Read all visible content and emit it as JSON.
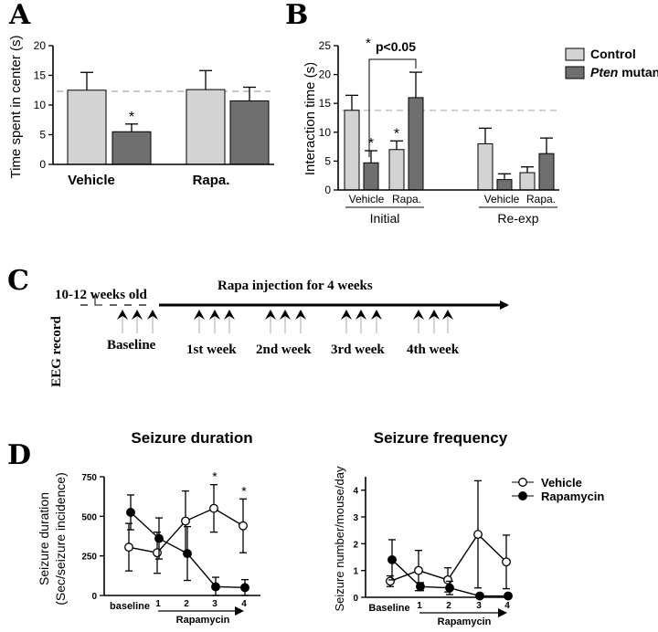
{
  "panel_labels": {
    "a": "A",
    "b": "B",
    "c": "C",
    "d": "D"
  },
  "colors": {
    "control": "#d3d3d3",
    "mutant": "#6f6f6f",
    "reference": "#c8c8c8"
  },
  "chart_data": [
    {
      "id": "A",
      "type": "bar",
      "ylabel": "Time spent in center (s)",
      "ylim": [
        0,
        20
      ],
      "yticks": [
        0,
        5,
        10,
        15,
        20
      ],
      "groups": [
        "Vehicle",
        "Rapa."
      ],
      "series": [
        {
          "name": "Control",
          "values": [
            12.5,
            12.6
          ],
          "errors": [
            3.0,
            3.2
          ]
        },
        {
          "name": "Pten mutant",
          "values": [
            5.5,
            10.7
          ],
          "errors": [
            1.3,
            2.3
          ]
        }
      ],
      "reference_line": 12.3,
      "significance": [
        {
          "group": 0,
          "series": 1,
          "mark": "*"
        }
      ]
    },
    {
      "id": "B",
      "type": "bar",
      "ylabel": "Interaction time (s)",
      "ylim": [
        0,
        25
      ],
      "yticks": [
        0,
        5,
        10,
        15,
        20,
        25
      ],
      "sections": [
        "Initial",
        "Re-exp"
      ],
      "groups": [
        "Vehicle",
        "Rapa.",
        "Vehicle",
        "Rapa."
      ],
      "series": [
        {
          "name": "Control",
          "values": [
            13.8,
            7.0,
            8.0,
            3.0
          ],
          "errors": [
            2.6,
            1.5,
            2.7,
            1.0
          ]
        },
        {
          "name": "Pten mutant",
          "values": [
            4.7,
            16.0,
            1.8,
            6.3
          ],
          "errors": [
            2.1,
            4.4,
            1.0,
            2.7
          ]
        }
      ],
      "reference_line": 13.8,
      "significance_marks": [
        "*",
        "*"
      ],
      "bracket_label": "p<0.05",
      "bracket_star": "*",
      "legend": [
        "Control",
        "Pten mutant"
      ],
      "legend_prefix": "Pten",
      "legend_suffix": " mutant"
    },
    {
      "id": "C",
      "type": "timeline",
      "age_label": "10-12 weeks old",
      "rapa_label": "Rapa injection for 4 weeks",
      "side_label": "EEG record",
      "periods": [
        "Baseline",
        "1st week",
        "2nd week",
        "3rd week",
        "4th week"
      ]
    },
    {
      "id": "D1",
      "type": "line",
      "title": "Seizure duration",
      "ylabel_line1": "Seizure duration",
      "ylabel_line2": "(Sec/seizure incidence)",
      "ylim": [
        0,
        750
      ],
      "yticks": [
        0,
        250,
        500,
        750
      ],
      "categories": [
        "baseline",
        "1",
        "2",
        "3",
        "4"
      ],
      "xbar_label": "Rapamycin",
      "series": [
        {
          "name": "Vehicle",
          "marker": "open",
          "values": [
            305,
            270,
            470,
            550,
            440
          ],
          "errors": [
            150,
            130,
            190,
            150,
            170
          ]
        },
        {
          "name": "Rapamycin",
          "marker": "filled",
          "values": [
            525,
            360,
            265,
            55,
            50
          ],
          "errors": [
            110,
            130,
            170,
            60,
            50
          ]
        }
      ],
      "significance": [
        {
          "index": 3,
          "mark": "*"
        },
        {
          "index": 4,
          "mark": "*"
        }
      ]
    },
    {
      "id": "D2",
      "type": "line",
      "title": "Seizure frequency",
      "ylabel": "Seizure number/mouse/day",
      "ylim": [
        0,
        4.5
      ],
      "yticks": [
        0,
        1,
        2,
        3,
        4
      ],
      "categories": [
        "Baseline",
        "1",
        "2",
        "3",
        "4"
      ],
      "xbar_label": "Rapamycin",
      "series": [
        {
          "name": "Vehicle",
          "marker": "open",
          "values": [
            0.6,
            1.0,
            0.65,
            2.35,
            1.32
          ],
          "errors": [
            0.2,
            0.75,
            0.45,
            2.0,
            1.0
          ]
        },
        {
          "name": "Rapamycin",
          "marker": "filled",
          "values": [
            1.4,
            0.4,
            0.35,
            0.05,
            0.05
          ],
          "errors": [
            0.75,
            0.15,
            0.25,
            0.05,
            0.05
          ]
        }
      ],
      "legend": [
        "Vehicle",
        "Rapamycin"
      ]
    }
  ]
}
